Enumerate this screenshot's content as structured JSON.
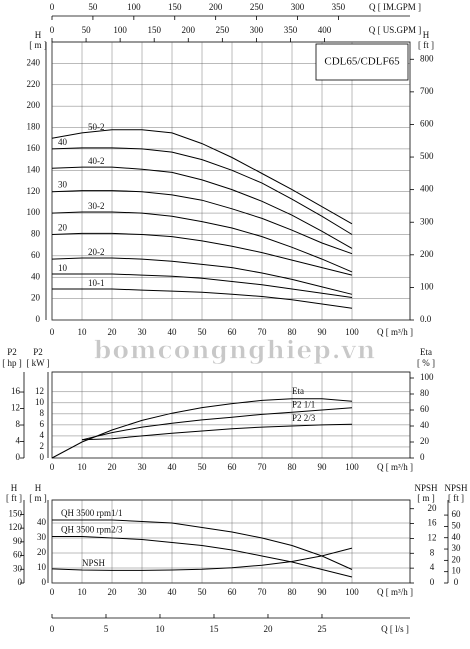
{
  "watermark": "bomcongnghiep.vn",
  "chart_data": [
    {
      "type": "line",
      "title": "CDL65/CDLF65",
      "x": [
        0,
        10,
        20,
        30,
        40,
        50,
        60,
        70,
        80,
        90,
        100
      ],
      "xlabel": "Q [ m³/h ]",
      "xlim": [
        0,
        100
      ],
      "xticks": [
        0,
        10,
        20,
        30,
        40,
        50,
        60,
        70,
        80,
        90,
        100
      ],
      "x2label": "Q [ IM.GPM ]",
      "x2lim": [
        0,
        366.6
      ],
      "x2ticks": [
        0,
        50,
        100,
        150,
        200,
        250,
        300,
        350
      ],
      "x3label": "Q [ US.GPM ]",
      "x3lim": [
        0,
        440.3
      ],
      "x3ticks": [
        0,
        50,
        100,
        150,
        200,
        250,
        300,
        350,
        400
      ],
      "ylabel": "H",
      "yunit": "[ m ]",
      "ylim": [
        0,
        260
      ],
      "yticks": [
        0,
        20,
        40,
        60,
        80,
        100,
        120,
        140,
        160,
        180,
        200,
        220,
        240
      ],
      "y2label": "H",
      "y2unit": "[ ft ]",
      "y2lim": [
        0,
        853
      ],
      "y2ticks": [
        {
          "value": 0,
          "label": "0.0"
        },
        100,
        200,
        300,
        400,
        500,
        600,
        700,
        800
      ],
      "grid": true,
      "series": [
        {
          "name": "50-2",
          "color": "#000000",
          "values": [
            170,
            175,
            178,
            178,
            175,
            165,
            152,
            137,
            122,
            106,
            90
          ]
        },
        {
          "name": "40",
          "color": "#000000",
          "values": [
            160,
            161,
            161,
            160,
            157,
            150,
            140,
            128,
            113,
            97,
            80
          ]
        },
        {
          "name": "40-2",
          "color": "#000000",
          "values": [
            142,
            143,
            143,
            141,
            138,
            131,
            122,
            111,
            98,
            83,
            67
          ]
        },
        {
          "name": "30",
          "color": "#000000",
          "values": [
            120,
            121,
            121,
            120,
            117,
            112,
            104,
            95,
            84,
            72,
            62
          ]
        },
        {
          "name": "30-2",
          "color": "#000000",
          "values": [
            100,
            101,
            101,
            100,
            97,
            92,
            86,
            78,
            68,
            57,
            45
          ]
        },
        {
          "name": "20",
          "color": "#000000",
          "values": [
            80,
            81,
            81,
            80,
            78,
            74,
            69,
            63,
            56,
            49,
            42
          ]
        },
        {
          "name": "20-2",
          "color": "#000000",
          "values": [
            57,
            58,
            58,
            57,
            55,
            52,
            49,
            44,
            38,
            31,
            24
          ]
        },
        {
          "name": "10",
          "color": "#000000",
          "values": [
            43,
            43,
            43,
            42,
            41,
            39,
            36,
            33,
            29,
            25,
            21
          ]
        },
        {
          "name": "10-1",
          "color": "#000000",
          "values": [
            29,
            29,
            29,
            28,
            27,
            26,
            24,
            22,
            19,
            15,
            11
          ]
        }
      ]
    },
    {
      "type": "line",
      "x": [
        0,
        10,
        20,
        30,
        40,
        50,
        60,
        70,
        80,
        90,
        100
      ],
      "xlabel": "Q [ m³/h ]",
      "xlim": [
        0,
        100
      ],
      "xticks": [
        0,
        10,
        20,
        30,
        40,
        50,
        60,
        70,
        80,
        90,
        100
      ],
      "ylabel": "P2",
      "yunit": "[ kW ]",
      "ylim": [
        0,
        14.5
      ],
      "yticks": [
        0,
        2,
        4,
        6,
        8,
        10,
        12
      ],
      "y3label": "P2",
      "y3unit": "[ hp ]",
      "y3lim": [
        0,
        19.4
      ],
      "y3ticks": [
        0,
        4,
        8,
        12,
        16
      ],
      "y2label": "Eta",
      "y2unit": "[ % ]",
      "y2lim": [
        0,
        100
      ],
      "y2ticks": [
        0,
        20,
        40,
        60,
        80,
        100
      ],
      "grid": true,
      "series": [
        {
          "name": "Eta",
          "color": "#000000",
          "axis": "y2",
          "values": [
            0,
            20,
            35,
            47,
            56,
            63,
            68,
            72,
            74,
            74,
            71
          ]
        },
        {
          "name": "P2 1/1",
          "color": "#000000",
          "values": [
            null,
            3.3,
            4.6,
            5.6,
            6.3,
            6.9,
            7.4,
            7.9,
            8.3,
            8.7,
            9.1
          ]
        },
        {
          "name": "P2 2/3",
          "color": "#000000",
          "values": [
            null,
            3.3,
            3.5,
            4.0,
            4.5,
            4.9,
            5.3,
            5.6,
            5.8,
            6.0,
            6.1
          ]
        }
      ]
    },
    {
      "type": "line",
      "x": [
        0,
        10,
        20,
        30,
        40,
        50,
        60,
        70,
        80,
        90,
        100
      ],
      "xlabel": "Q [ m³/h ]",
      "xlim": [
        0,
        100
      ],
      "xticks": [
        0,
        10,
        20,
        30,
        40,
        50,
        60,
        70,
        80,
        90,
        100
      ],
      "x2label": "Q [ l/s ]",
      "x2lim": [
        0,
        27.78
      ],
      "x2ticks": [
        0,
        5,
        10,
        15,
        20,
        25
      ],
      "ylabel": "H",
      "yunit": "[ m ]",
      "ylim": [
        0,
        52
      ],
      "yticks": [
        0,
        10,
        20,
        30,
        40
      ],
      "y3label": "H",
      "y3unit": "[ ft ]",
      "y3lim": [
        0,
        170.6
      ],
      "y3ticks": [
        0,
        30,
        60,
        90,
        120,
        150
      ],
      "y2label": "NPSH",
      "y2unit": "[ m ]",
      "y2lim": [
        0,
        21
      ],
      "y2ticks": [
        0,
        4,
        8,
        12,
        16,
        20
      ],
      "y4label": "NPSH",
      "y4unit": "[ ft ]",
      "y4lim": [
        0,
        68.9
      ],
      "y4ticks": [
        0,
        10,
        20,
        30,
        40,
        50,
        60
      ],
      "grid": true,
      "series": [
        {
          "name": "QH  3500 rpm1/1",
          "color": "#000000",
          "values": [
            42,
            42,
            42,
            41,
            40,
            37,
            34,
            30,
            25,
            18,
            9
          ]
        },
        {
          "name": "QH  3500 rpm2/3",
          "color": "#000000",
          "values": [
            31,
            31,
            30,
            29,
            27,
            25,
            22,
            18,
            14,
            9,
            4
          ]
        },
        {
          "name": "NPSH",
          "color": "#000000",
          "axis": "y2",
          "values": [
            3.8,
            3.5,
            3.4,
            3.4,
            3.5,
            3.7,
            4.1,
            4.8,
            5.8,
            7.3,
            9.4
          ]
        }
      ]
    }
  ]
}
